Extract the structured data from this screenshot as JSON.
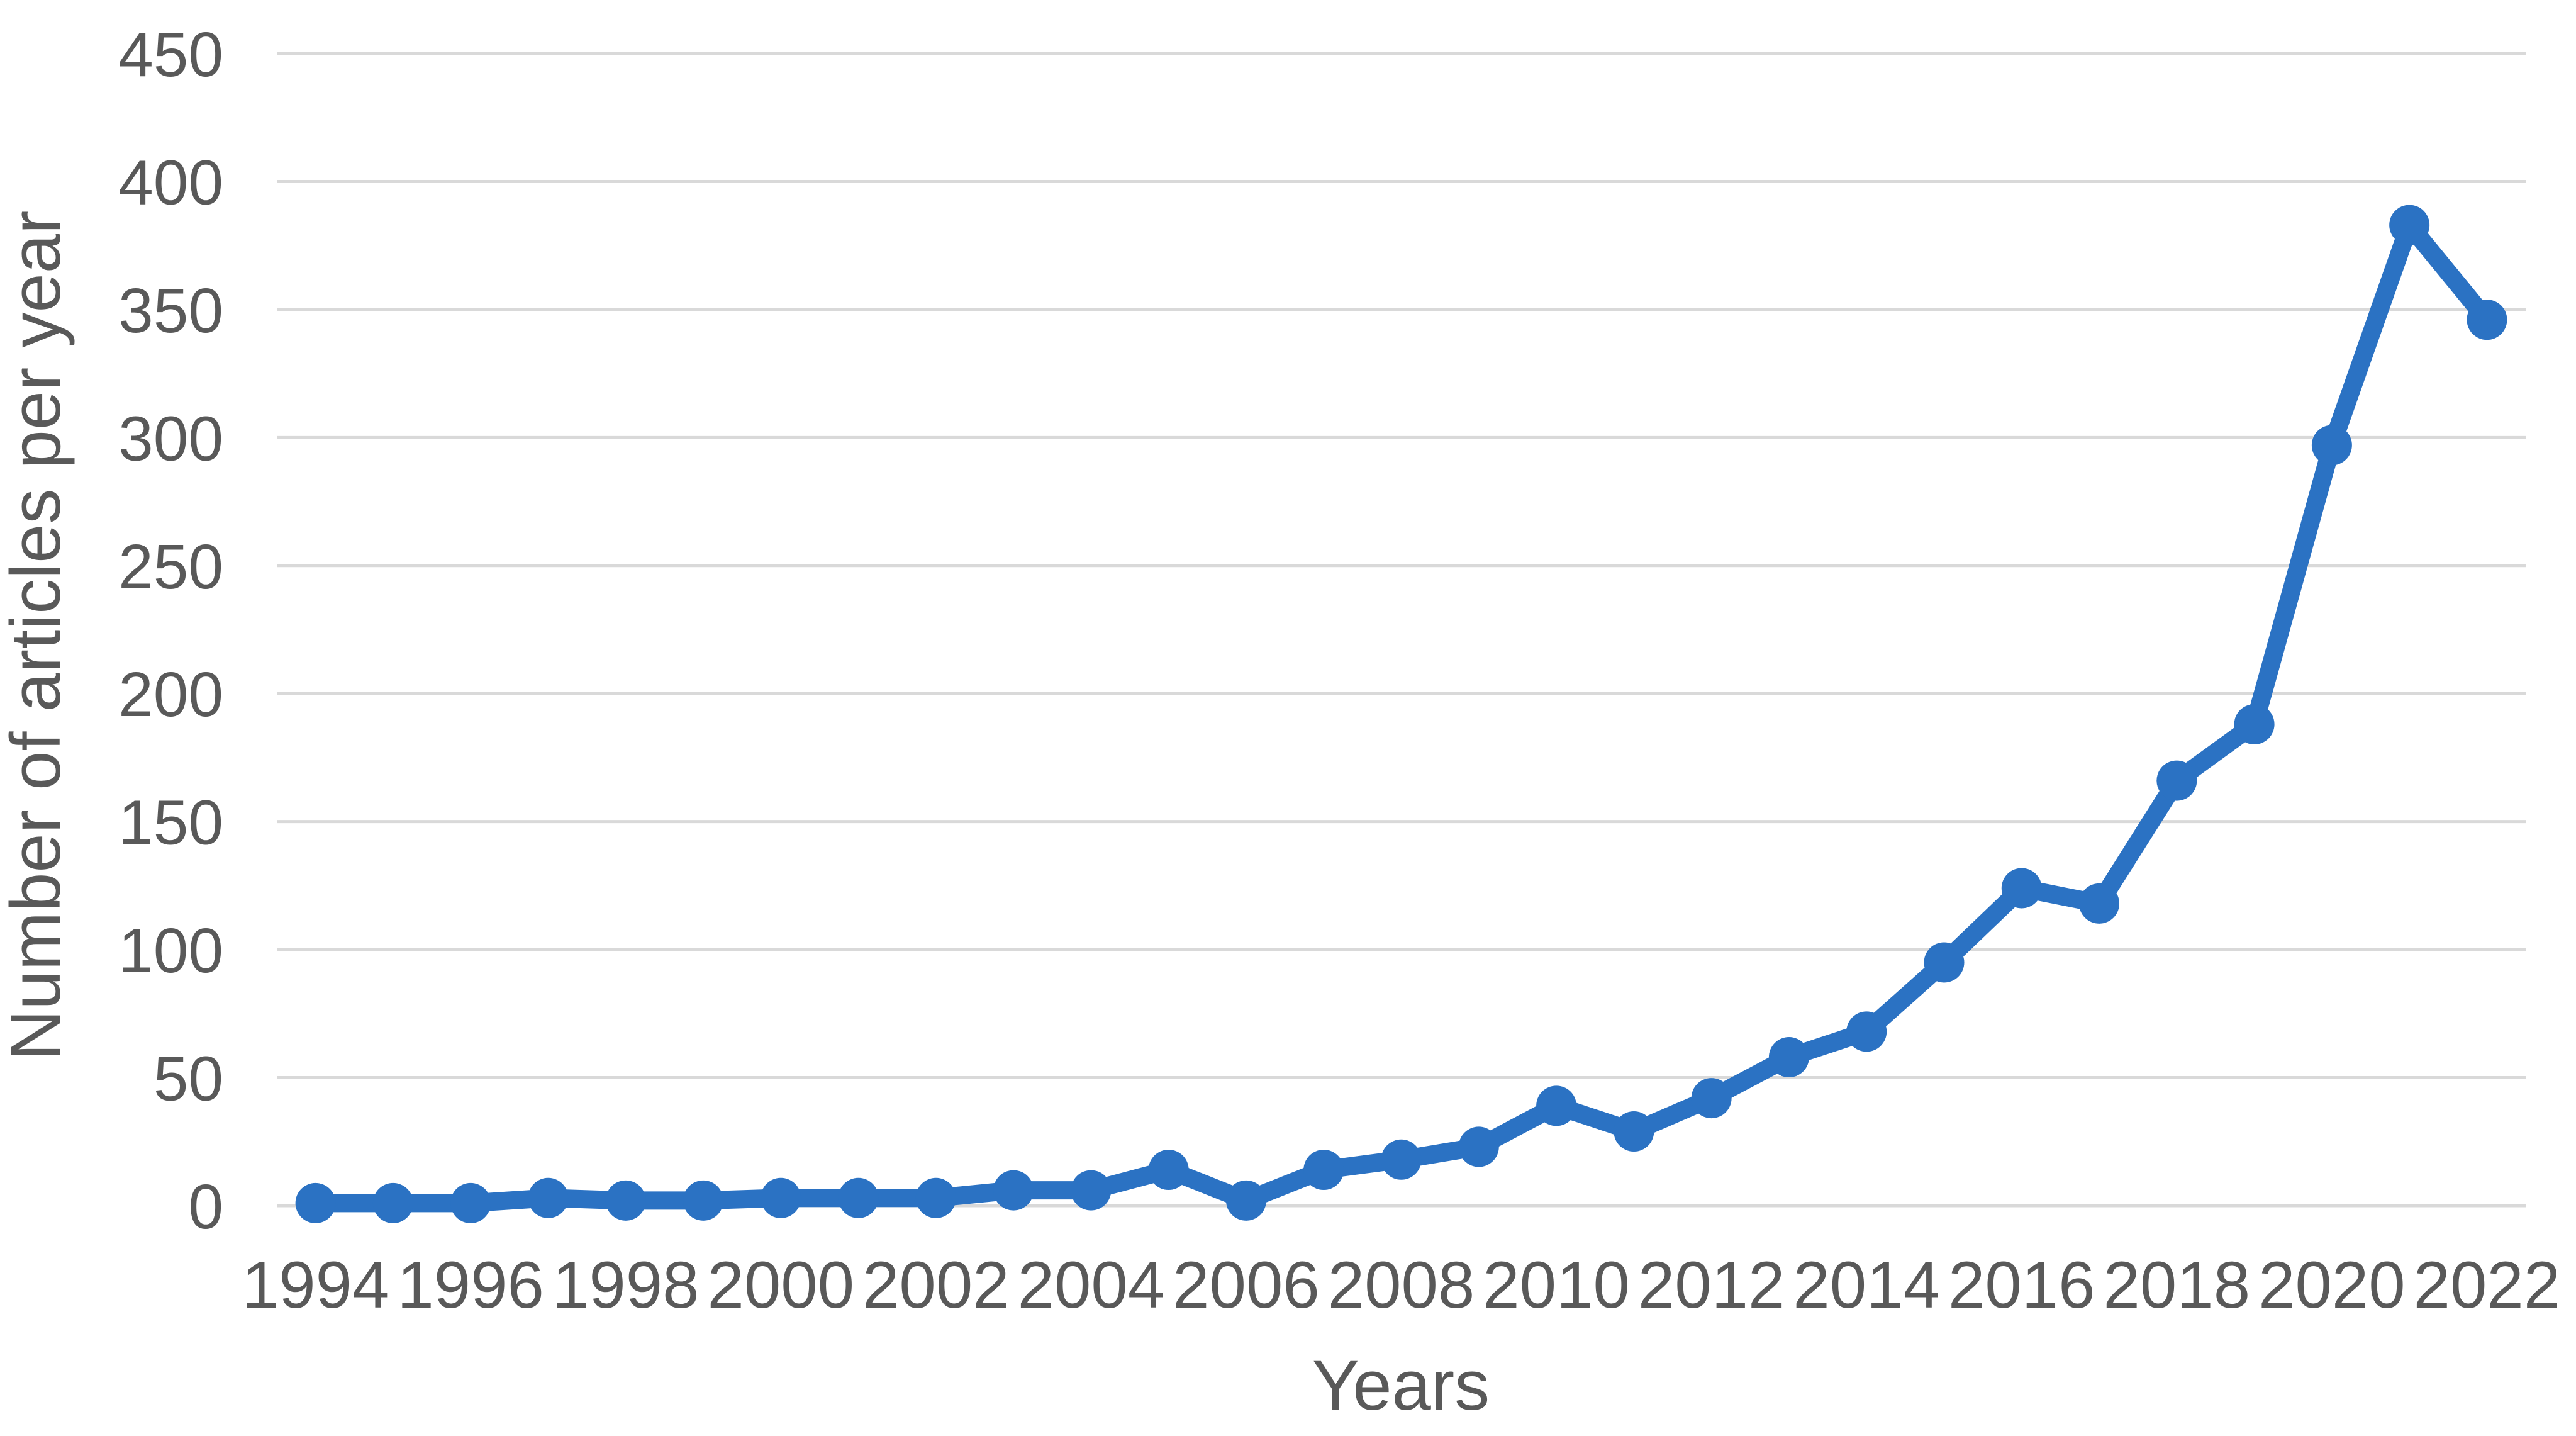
{
  "chart_data": {
    "type": "line",
    "title": "",
    "xlabel": "Years",
    "ylabel": "Number of articles per year",
    "x": [
      1994,
      1995,
      1996,
      1997,
      1998,
      1999,
      2000,
      2001,
      2002,
      2003,
      2004,
      2005,
      2006,
      2007,
      2008,
      2009,
      2010,
      2011,
      2012,
      2013,
      2014,
      2015,
      2016,
      2017,
      2018,
      2019,
      2020,
      2021,
      2022
    ],
    "values": [
      1,
      1,
      1,
      3,
      2,
      2,
      3,
      3,
      3,
      6,
      6,
      14,
      2,
      14,
      18,
      23,
      39,
      29,
      42,
      58,
      68,
      95,
      124,
      118,
      166,
      188,
      297,
      383,
      346
    ],
    "x_tick_labels": [
      "1994",
      "1996",
      "1998",
      "2000",
      "2002",
      "2004",
      "2006",
      "2008",
      "2010",
      "2012",
      "2014",
      "2016",
      "2018",
      "2020",
      "2022"
    ],
    "y_ticks": [
      0,
      50,
      100,
      150,
      200,
      250,
      300,
      350,
      400,
      450
    ],
    "ylim": [
      0,
      450
    ],
    "grid": "horizontal-only",
    "legend": "none",
    "series_name": "Number of articles per year",
    "series_color": "#2b72c3",
    "marker": "circle",
    "gridline_color": "#d9d9d9",
    "axis_text_color": "#595959",
    "background_color": "#ffffff"
  }
}
